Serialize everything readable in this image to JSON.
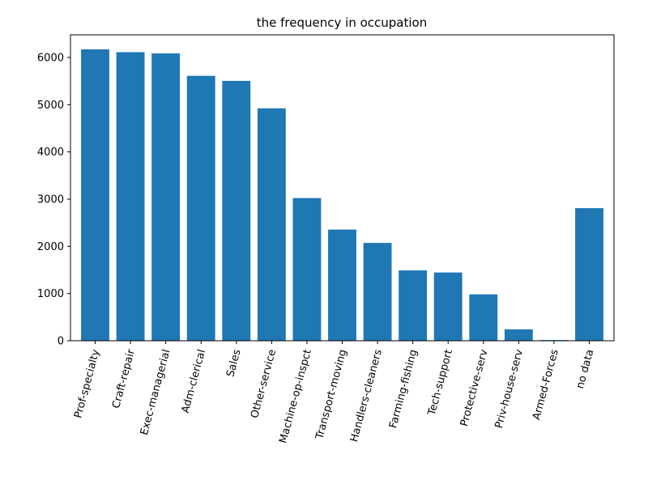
{
  "chart_data": {
    "type": "bar",
    "title": "the frequency in occupation",
    "xlabel": "",
    "ylabel": "",
    "categories": [
      "Prof-specialty",
      "Craft-repair",
      "Exec-managerial",
      "Adm-clerical",
      "Sales",
      "Other-service",
      "Machine-op-inspct",
      "Transport-moving",
      "Handlers-cleaners",
      "Farming-fishing",
      "Tech-support",
      "Protective-serv",
      "Priv-house-serv",
      "Armed-Forces",
      "no data"
    ],
    "values": [
      6172,
      6112,
      6086,
      5611,
      5504,
      4923,
      3022,
      2355,
      2072,
      1490,
      1446,
      983,
      242,
      15,
      2809
    ],
    "ylim": [
      0,
      6480
    ],
    "yticks": [
      0,
      1000,
      2000,
      3000,
      4000,
      5000,
      6000
    ],
    "tick_rotation_deg": 75,
    "bar_color": "#1f77b4",
    "grid": false,
    "legend": false
  }
}
